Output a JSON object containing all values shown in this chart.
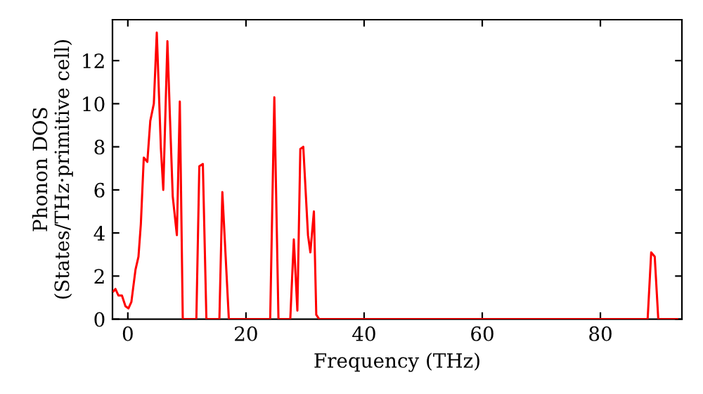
{
  "chart_data": {
    "type": "line",
    "xlabel": "Frequency (THz)",
    "ylabel": "Phonon DOS\n(States/THz·primitive cell)",
    "xlim": [
      -2.6,
      93.8
    ],
    "ylim": [
      0,
      13.9
    ],
    "xticks": [
      0,
      20,
      40,
      60,
      80
    ],
    "yticks": [
      0,
      2,
      4,
      6,
      8,
      10,
      12
    ],
    "grid": false,
    "legend": false,
    "marker": "none",
    "line_style": "solid",
    "series": [
      {
        "color": "#ff0000",
        "x": [
          -2.4,
          -2.1,
          -1.6,
          -1.0,
          -0.4,
          0.1,
          0.6,
          1.3,
          1.8,
          2.2,
          2.7,
          3.3,
          3.8,
          4.4,
          4.9,
          5.6,
          6.0,
          6.7,
          7.1,
          7.6,
          8.3,
          8.8,
          9.3,
          11.6,
          12.1,
          12.7,
          13.3,
          15.5,
          16.0,
          17.1,
          24.1,
          24.8,
          25.5,
          27.5,
          28.1,
          28.7,
          29.2,
          29.7,
          30.5,
          30.9,
          31.5,
          31.9,
          32.4,
          88.0,
          88.6,
          89.2,
          89.8,
          93.0
        ],
        "values": [
          1.3,
          1.4,
          1.1,
          1.1,
          0.6,
          0.5,
          0.8,
          2.3,
          2.9,
          4.4,
          7.5,
          7.3,
          9.2,
          10.0,
          13.3,
          7.9,
          6.0,
          12.9,
          9.6,
          5.7,
          3.9,
          10.1,
          0,
          0,
          7.1,
          7.2,
          0,
          0,
          5.9,
          0,
          0,
          10.3,
          0,
          0,
          3.7,
          0.4,
          7.9,
          8.0,
          3.9,
          3.1,
          5.0,
          0.2,
          0,
          0,
          3.1,
          2.9,
          0,
          0
        ]
      }
    ]
  }
}
